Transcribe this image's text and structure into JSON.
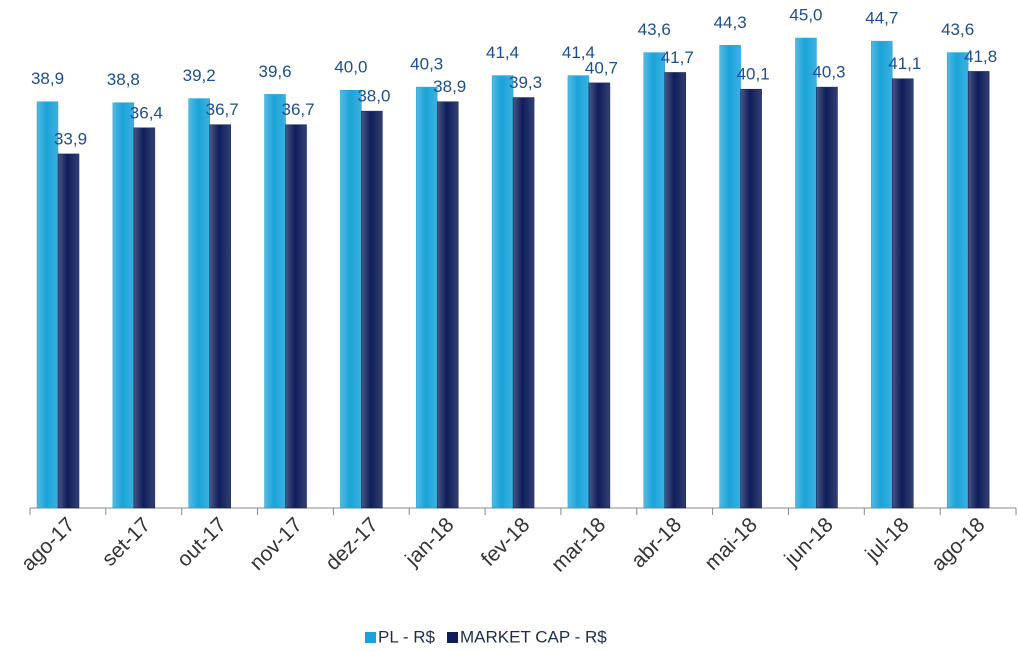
{
  "chart_data": {
    "type": "bar",
    "categories": [
      "ago-17",
      "set-17",
      "out-17",
      "nov-17",
      "dez-17",
      "jan-18",
      "fev-18",
      "mar-18",
      "abr-18",
      "mai-18",
      "jun-18",
      "jul-18",
      "ago-18"
    ],
    "series": [
      {
        "name": "PL - R$",
        "color": "#1aa3d9",
        "values": [
          38.9,
          38.8,
          39.2,
          39.6,
          40.0,
          40.3,
          41.4,
          41.4,
          43.6,
          44.3,
          45.0,
          44.7,
          43.6
        ],
        "value_labels": [
          "38,9",
          "38,8",
          "39,2",
          "39,6",
          "40,0",
          "40,3",
          "41,4",
          "41,4",
          "43,6",
          "44,3",
          "45,0",
          "44,7",
          "43,6"
        ]
      },
      {
        "name": "MARKET CAP - R$",
        "color": "#0f1e5a",
        "values": [
          33.9,
          36.4,
          36.7,
          36.7,
          38.0,
          38.9,
          39.3,
          40.7,
          41.7,
          40.1,
          40.3,
          41.1,
          41.8
        ],
        "value_labels": [
          "33,9",
          "36,4",
          "36,7",
          "36,7",
          "38,0",
          "38,9",
          "39,3",
          "40,7",
          "41,7",
          "40,1",
          "40,3",
          "41,1",
          "41,8"
        ]
      }
    ],
    "ylim": [
      0,
      45
    ],
    "legend": "bottom"
  }
}
